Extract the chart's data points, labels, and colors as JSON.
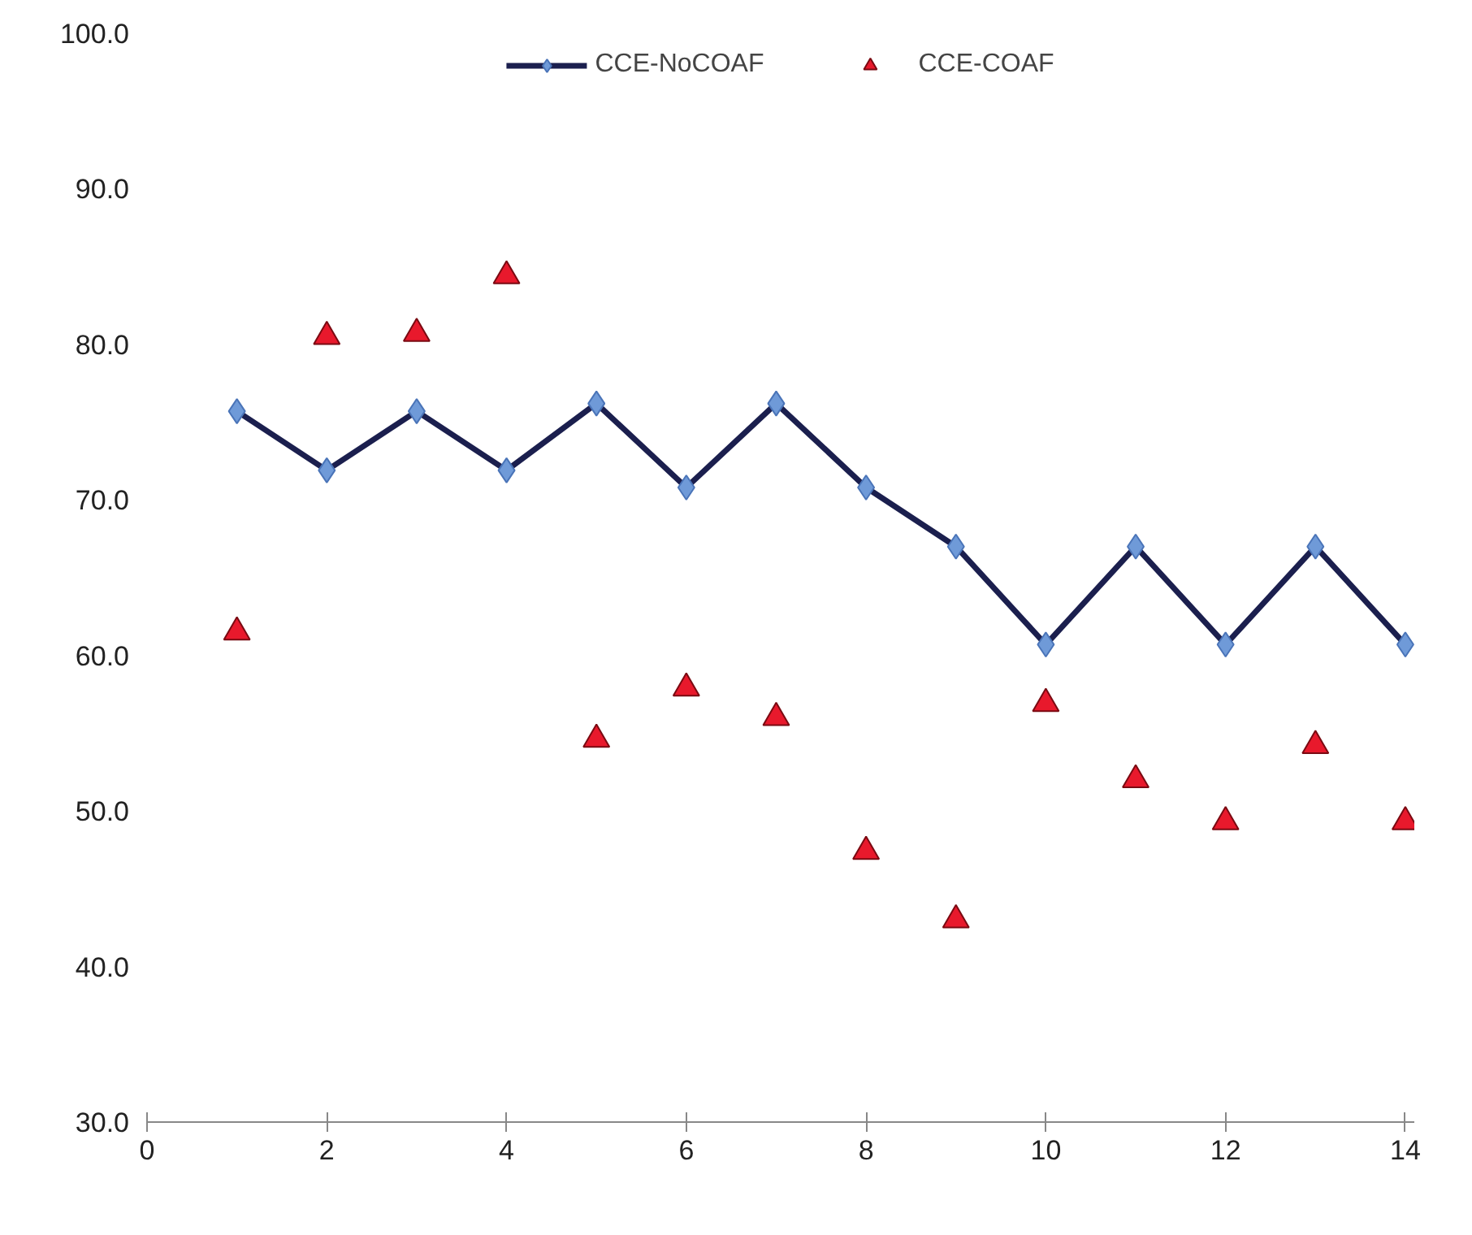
{
  "chart_data": {
    "type": "line",
    "x": [
      1,
      2,
      3,
      4,
      5,
      6,
      7,
      8,
      9,
      10,
      11,
      12,
      13,
      14
    ],
    "series": [
      {
        "name": "CCE-NoCOAF",
        "marker": "diamond",
        "color": "#1b1f4e",
        "values": [
          75.7,
          71.9,
          75.7,
          71.9,
          76.2,
          70.8,
          76.2,
          70.8,
          67.0,
          60.7,
          67.0,
          60.7,
          67.0,
          60.7
        ]
      },
      {
        "name": "CCE-COAF",
        "type": "scatter",
        "marker": "triangle",
        "color": "#e8192c",
        "values": [
          61.5,
          80.5,
          80.7,
          84.4,
          54.6,
          57.9,
          56.0,
          47.4,
          43.0,
          56.9,
          52.0,
          49.3,
          54.2,
          49.3
        ]
      }
    ],
    "xlim": [
      0,
      14.1
    ],
    "xticks": [
      0,
      2,
      4,
      6,
      8,
      10,
      12,
      14
    ],
    "ylim": [
      30,
      100
    ],
    "yticks": [
      {
        "value": 30,
        "label": "30.0"
      },
      {
        "value": 40,
        "label": "40.0"
      },
      {
        "value": 50,
        "label": "50.0"
      },
      {
        "value": 60,
        "label": "60.0"
      },
      {
        "value": 70,
        "label": "70.0"
      },
      {
        "value": 80,
        "label": "80.0"
      },
      {
        "value": 90,
        "label": "90.0"
      },
      {
        "value": 100,
        "label": "100.0"
      }
    ],
    "legend": "top",
    "grid": false
  }
}
